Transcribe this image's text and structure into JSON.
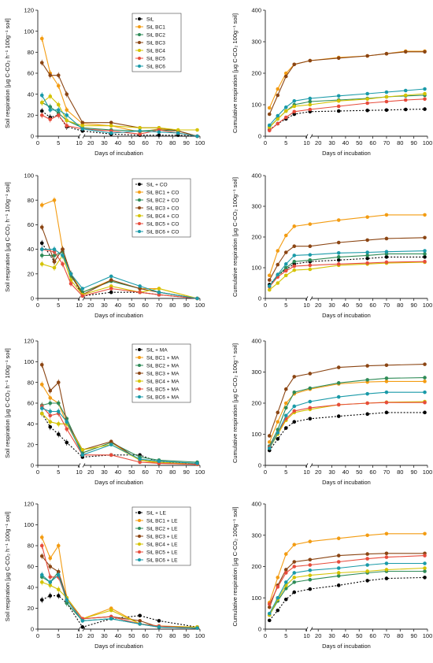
{
  "palette": [
    "#000000",
    "#f39c12",
    "#2e8b57",
    "#8b4513",
    "#d4c300",
    "#e74c3c",
    "#1a9aa8"
  ],
  "x_tick_labels": [
    "0",
    "5",
    "10",
    "20",
    "30",
    "40",
    "50",
    "60",
    "70",
    "80",
    "90",
    "100"
  ],
  "chart_data": [
    {
      "type": "line",
      "xlabel": "Days of incubation",
      "ylabel": "Soil respiration [µg C-CO₂ h⁻¹ 100g⁻¹ soil]",
      "ylim": [
        0,
        120
      ],
      "yticks": [
        0,
        20,
        40,
        60,
        80,
        100,
        120
      ],
      "axis_break": [
        10,
        15
      ],
      "legend_position": "top-right",
      "x": [
        1,
        3,
        5,
        7,
        14,
        35,
        56,
        70,
        84,
        98
      ],
      "series": [
        {
          "name": "SiL",
          "values": [
            24,
            18,
            20,
            9,
            5,
            2,
            1,
            1,
            1,
            0
          ]
        },
        {
          "name": "SiL BC1",
          "values": [
            93,
            60,
            48,
            25,
            12,
            10,
            4,
            7,
            5,
            0
          ]
        },
        {
          "name": "SiL BC2",
          "values": [
            32,
            28,
            22,
            15,
            8,
            6,
            5,
            6,
            5,
            0
          ]
        },
        {
          "name": "SiL BC3",
          "values": [
            70,
            58,
            58,
            40,
            13,
            13,
            8,
            8,
            5,
            0
          ]
        },
        {
          "name": "SiL BC4",
          "values": [
            32,
            38,
            30,
            15,
            10,
            10,
            8,
            8,
            6,
            6
          ]
        },
        {
          "name": "SiL BC5",
          "values": [
            20,
            16,
            20,
            10,
            7,
            5,
            2,
            6,
            3,
            0
          ]
        },
        {
          "name": "SiL BC6",
          "values": [
            39,
            25,
            25,
            20,
            7,
            3,
            5,
            4,
            3,
            0
          ]
        }
      ]
    },
    {
      "type": "line",
      "xlabel": "Days of incubation",
      "ylabel": "Cumulative respiration [µg C-CO₂ 100g⁻¹ soil]",
      "ylim": [
        0,
        400
      ],
      "yticks": [
        0,
        100,
        200,
        300,
        400
      ],
      "axis_break": [
        10,
        15
      ],
      "x": [
        1,
        3,
        5,
        7,
        14,
        35,
        56,
        70,
        84,
        98
      ],
      "series": [
        {
          "name": "SiL",
          "values": [
            20,
            40,
            55,
            70,
            78,
            80,
            82,
            83,
            85,
            86
          ]
        },
        {
          "name": "SiL BC1",
          "values": [
            90,
            150,
            200,
            228,
            240,
            250,
            255,
            262,
            270,
            270
          ]
        },
        {
          "name": "SiL BC2",
          "values": [
            30,
            55,
            80,
            100,
            110,
            115,
            120,
            125,
            128,
            130
          ]
        },
        {
          "name": "SiL BC3",
          "values": [
            70,
            130,
            190,
            228,
            240,
            248,
            255,
            262,
            268,
            268
          ]
        },
        {
          "name": "SiL BC4",
          "values": [
            28,
            55,
            80,
            95,
            100,
            112,
            118,
            125,
            130,
            135
          ]
        },
        {
          "name": "SiL BC5",
          "values": [
            18,
            40,
            60,
            78,
            85,
            95,
            105,
            110,
            115,
            118
          ]
        },
        {
          "name": "SiL BC6",
          "values": [
            35,
            65,
            92,
            112,
            120,
            128,
            135,
            140,
            145,
            150
          ]
        }
      ]
    },
    {
      "type": "line",
      "xlabel": "Days of incubation",
      "ylabel": "Soil respiration [µg C-CO₂ h⁻¹ 100g⁻¹ soil]",
      "ylim": [
        0,
        100
      ],
      "yticks": [
        0,
        20,
        40,
        60,
        80,
        100
      ],
      "axis_break": [
        10,
        15
      ],
      "legend_position": "top-right",
      "x": [
        1,
        4,
        6,
        8,
        14,
        35,
        56,
        70,
        98
      ],
      "series": [
        {
          "name": "SiL + CO",
          "values": [
            45,
            30,
            40,
            20,
            2,
            5,
            5,
            3,
            0
          ]
        },
        {
          "name": "SiL BC1 + CO",
          "values": [
            76,
            80,
            40,
            20,
            5,
            15,
            8,
            8,
            0
          ]
        },
        {
          "name": "SiL BC2 + CO",
          "values": [
            35,
            35,
            38,
            18,
            5,
            14,
            8,
            5,
            0
          ]
        },
        {
          "name": "SiL BC3 + CO",
          "values": [
            58,
            30,
            40,
            20,
            3,
            15,
            8,
            5,
            0
          ]
        },
        {
          "name": "SiL BC4 + CO",
          "values": [
            28,
            25,
            35,
            15,
            3,
            10,
            5,
            8,
            0
          ]
        },
        {
          "name": "SiL BC5 + CO",
          "values": [
            40,
            38,
            28,
            12,
            2,
            8,
            5,
            3,
            0
          ]
        },
        {
          "name": "SiL BC6 + CO",
          "values": [
            40,
            40,
            35,
            20,
            8,
            18,
            10,
            5,
            0
          ]
        }
      ]
    },
    {
      "type": "line",
      "xlabel": "Days of incubation",
      "ylabel": "Cumulative respiration [µg C-CO₂ 100g⁻¹ soil]",
      "ylim": [
        0,
        400
      ],
      "yticks": [
        0,
        100,
        200,
        300,
        400
      ],
      "axis_break": [
        10,
        15
      ],
      "x": [
        1,
        3,
        5,
        7,
        14,
        35,
        56,
        70,
        98
      ],
      "series": [
        {
          "name": "SiL + CO",
          "values": [
            45,
            75,
            95,
            112,
            120,
            125,
            130,
            135,
            135
          ]
        },
        {
          "name": "SiL BC1 + CO",
          "values": [
            75,
            155,
            205,
            235,
            242,
            255,
            265,
            272,
            272
          ]
        },
        {
          "name": "SiL BC2 + CO",
          "values": [
            40,
            75,
            100,
            120,
            125,
            135,
            140,
            145,
            145
          ]
        },
        {
          "name": "SiL BC3 + CO",
          "values": [
            60,
            110,
            150,
            170,
            170,
            182,
            190,
            195,
            198
          ]
        },
        {
          "name": "SiL BC4 + CO",
          "values": [
            28,
            50,
            75,
            92,
            95,
            108,
            112,
            115,
            118
          ]
        },
        {
          "name": "SiL BC5 + CO",
          "values": [
            38,
            70,
            90,
            105,
            108,
            112,
            115,
            118,
            120
          ]
        },
        {
          "name": "SiL BC6 + CO",
          "values": [
            40,
            78,
            112,
            140,
            142,
            148,
            150,
            152,
            155
          ]
        }
      ]
    },
    {
      "type": "line",
      "xlabel": "Days of incubation",
      "ylabel": "Soil respiration [µg C-CO₂ h⁻¹ 100g⁻¹ soil]",
      "ylim": [
        0,
        120
      ],
      "yticks": [
        0,
        20,
        40,
        60,
        80,
        100,
        120
      ],
      "axis_break": [
        10,
        15
      ],
      "legend_position": "top-right",
      "x": [
        1,
        3,
        5,
        7,
        14,
        35,
        56,
        70,
        98
      ],
      "series": [
        {
          "name": "SiL + MA",
          "values": [
            50,
            37,
            30,
            22,
            8,
            10,
            10,
            3,
            2
          ]
        },
        {
          "name": "SiL BC1 + MA",
          "values": [
            78,
            65,
            60,
            40,
            12,
            22,
            5,
            2,
            1
          ]
        },
        {
          "name": "SiL BC2 + MA",
          "values": [
            58,
            60,
            60,
            45,
            12,
            22,
            8,
            5,
            3
          ]
        },
        {
          "name": "SiL BC3 + MA",
          "values": [
            97,
            72,
            80,
            42,
            15,
            23,
            5,
            3,
            1
          ]
        },
        {
          "name": "SiL BC4 + MA",
          "values": [
            50,
            42,
            40,
            40,
            15,
            20,
            5,
            3,
            1
          ]
        },
        {
          "name": "SiL BC5 + MA",
          "values": [
            57,
            48,
            50,
            35,
            10,
            10,
            3,
            2,
            1
          ]
        },
        {
          "name": "SiL BC6 + MA",
          "values": [
            55,
            52,
            52,
            42,
            10,
            20,
            6,
            4,
            2
          ]
        }
      ]
    },
    {
      "type": "line",
      "xlabel": "Days of incubation",
      "ylabel": "Cumulative respiration [µg C-CO₂ 100g⁻¹ soil]",
      "ylim": [
        0,
        400
      ],
      "yticks": [
        0,
        100,
        200,
        300,
        400
      ],
      "axis_break": [
        10,
        15
      ],
      "x": [
        1,
        3,
        5,
        7,
        14,
        35,
        56,
        70,
        98
      ],
      "series": [
        {
          "name": "SiL + MA",
          "values": [
            48,
            85,
            120,
            140,
            150,
            158,
            165,
            170,
            170
          ]
        },
        {
          "name": "SiL BC1 + MA",
          "values": [
            75,
            140,
            200,
            230,
            245,
            262,
            268,
            270,
            270
          ]
        },
        {
          "name": "SiL BC2 + MA",
          "values": [
            62,
            115,
            185,
            235,
            248,
            265,
            275,
            280,
            282
          ]
        },
        {
          "name": "SiL BC3 + MA",
          "values": [
            95,
            170,
            245,
            285,
            295,
            315,
            320,
            322,
            325
          ]
        },
        {
          "name": "SiL BC4 + MA",
          "values": [
            55,
            100,
            145,
            170,
            180,
            195,
            200,
            203,
            205
          ]
        },
        {
          "name": "SiL BC5 + MA",
          "values": [
            58,
            105,
            150,
            175,
            185,
            195,
            200,
            202,
            202
          ]
        },
        {
          "name": "SiL BC6 + MA",
          "values": [
            55,
            105,
            160,
            190,
            205,
            220,
            230,
            235,
            235
          ]
        }
      ]
    },
    {
      "type": "line",
      "xlabel": "Days of incubation",
      "ylabel": "Soil respiration [µg C-CO₂ h⁻¹ 100g⁻¹ soil]",
      "ylim": [
        0,
        120
      ],
      "yticks": [
        0,
        20,
        40,
        60,
        80,
        100,
        120
      ],
      "axis_break": [
        10,
        15
      ],
      "legend_position": "top-right",
      "x": [
        1,
        3,
        5,
        7,
        14,
        35,
        56,
        70,
        98
      ],
      "series": [
        {
          "name": "SiL + LE",
          "values": [
            28,
            32,
            32,
            25,
            2,
            10,
            13,
            8,
            2
          ]
        },
        {
          "name": "SiL BC1 + LE",
          "values": [
            88,
            68,
            80,
            30,
            10,
            20,
            5,
            3,
            2
          ]
        },
        {
          "name": "SiL BC2 + LE",
          "values": [
            50,
            45,
            55,
            25,
            8,
            10,
            5,
            2,
            1
          ]
        },
        {
          "name": "SiL BC3 + LE",
          "values": [
            70,
            60,
            55,
            30,
            10,
            12,
            8,
            2,
            1
          ]
        },
        {
          "name": "SiL BC4 + LE",
          "values": [
            45,
            42,
            38,
            30,
            10,
            18,
            5,
            3,
            2
          ]
        },
        {
          "name": "SiL BC5 + LE",
          "values": [
            80,
            50,
            50,
            28,
            10,
            12,
            5,
            3,
            1
          ]
        },
        {
          "name": "SiL BC6 + LE",
          "values": [
            52,
            45,
            52,
            28,
            8,
            10,
            5,
            2,
            1
          ]
        }
      ]
    },
    {
      "type": "line",
      "xlabel": "Days of incubation",
      "ylabel": "Cumulative respiration [µg C-CO₂ 100g⁻¹ soil]",
      "ylim": [
        0,
        400
      ],
      "yticks": [
        0,
        100,
        200,
        300,
        400
      ],
      "axis_break": [
        10,
        15
      ],
      "x": [
        1,
        3,
        5,
        7,
        14,
        35,
        56,
        70,
        98
      ],
      "series": [
        {
          "name": "SiL + LE",
          "values": [
            28,
            60,
            95,
            118,
            128,
            140,
            155,
            162,
            165
          ]
        },
        {
          "name": "SiL BC1 + LE",
          "values": [
            85,
            165,
            240,
            270,
            280,
            290,
            300,
            305,
            305
          ]
        },
        {
          "name": "SiL BC2 + LE",
          "values": [
            45,
            90,
            130,
            150,
            158,
            170,
            180,
            185,
            185
          ]
        },
        {
          "name": "SiL BC3 + LE",
          "values": [
            70,
            140,
            190,
            215,
            222,
            235,
            240,
            242,
            242
          ]
        },
        {
          "name": "SiL BC4 + LE",
          "values": [
            45,
            95,
            140,
            165,
            172,
            180,
            185,
            190,
            195
          ]
        },
        {
          "name": "SiL BC5 + LE",
          "values": [
            80,
            135,
            180,
            200,
            205,
            215,
            225,
            230,
            235
          ]
        },
        {
          "name": "SiL BC6 + LE",
          "values": [
            50,
            100,
            150,
            180,
            188,
            195,
            205,
            210,
            210
          ]
        }
      ]
    }
  ]
}
